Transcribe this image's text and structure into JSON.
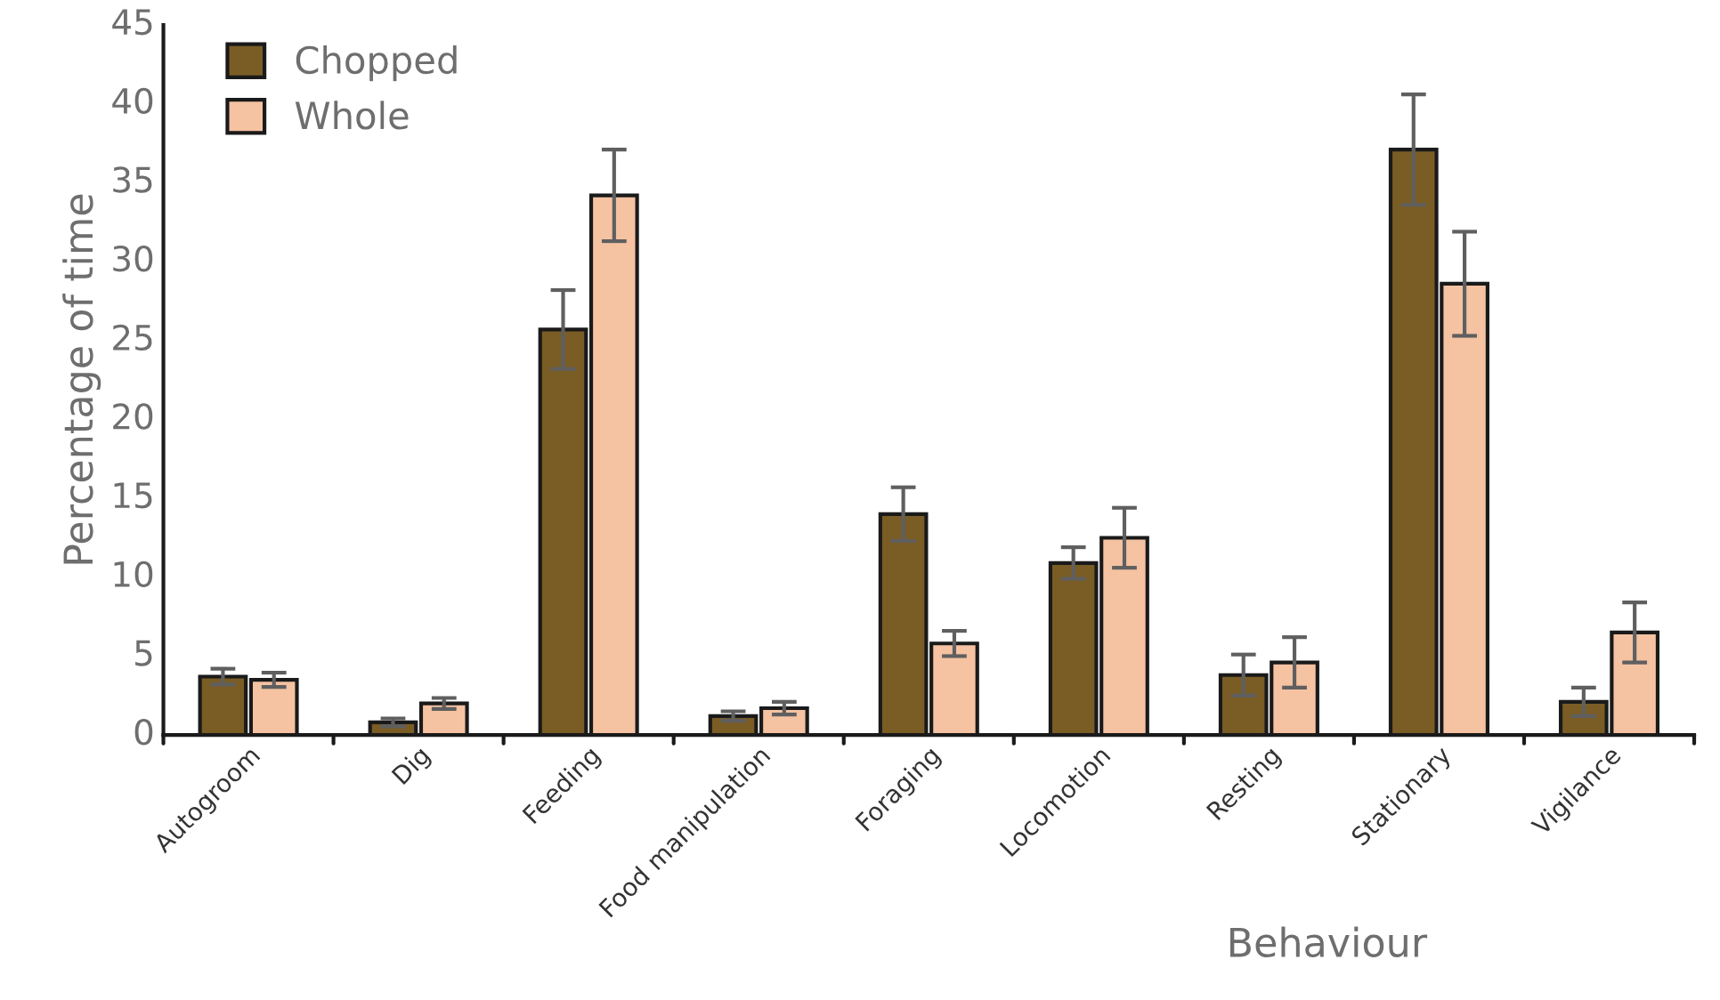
{
  "chart_data": {
    "type": "bar",
    "xlabel": "Behaviour",
    "ylabel": "Percentage of time",
    "categories": [
      "Autogroom",
      "Dig",
      "Feeding",
      "Food manipulation",
      "Foraging",
      "Locomotion",
      "Resting",
      "Stationary",
      "Vigilance"
    ],
    "series": [
      {
        "name": "Chopped",
        "color": "#7a5c25",
        "values": [
          3.7,
          0.8,
          25.7,
          1.2,
          14.0,
          10.9,
          3.8,
          37.1,
          2.1
        ],
        "errors": [
          0.5,
          0.25,
          2.5,
          0.3,
          1.7,
          1.0,
          1.3,
          3.5,
          0.9
        ]
      },
      {
        "name": "Whole",
        "color": "#f5c2a2",
        "values": [
          3.5,
          2.0,
          34.2,
          1.7,
          5.8,
          12.5,
          4.6,
          28.6,
          6.5
        ],
        "errors": [
          0.45,
          0.35,
          2.9,
          0.4,
          0.8,
          1.9,
          1.6,
          3.3,
          1.9
        ]
      }
    ],
    "ylim": [
      0,
      45
    ],
    "yticks": [
      0,
      5,
      10,
      15,
      20,
      25,
      30,
      35,
      40,
      45
    ],
    "grid": false,
    "legend": "top left"
  }
}
